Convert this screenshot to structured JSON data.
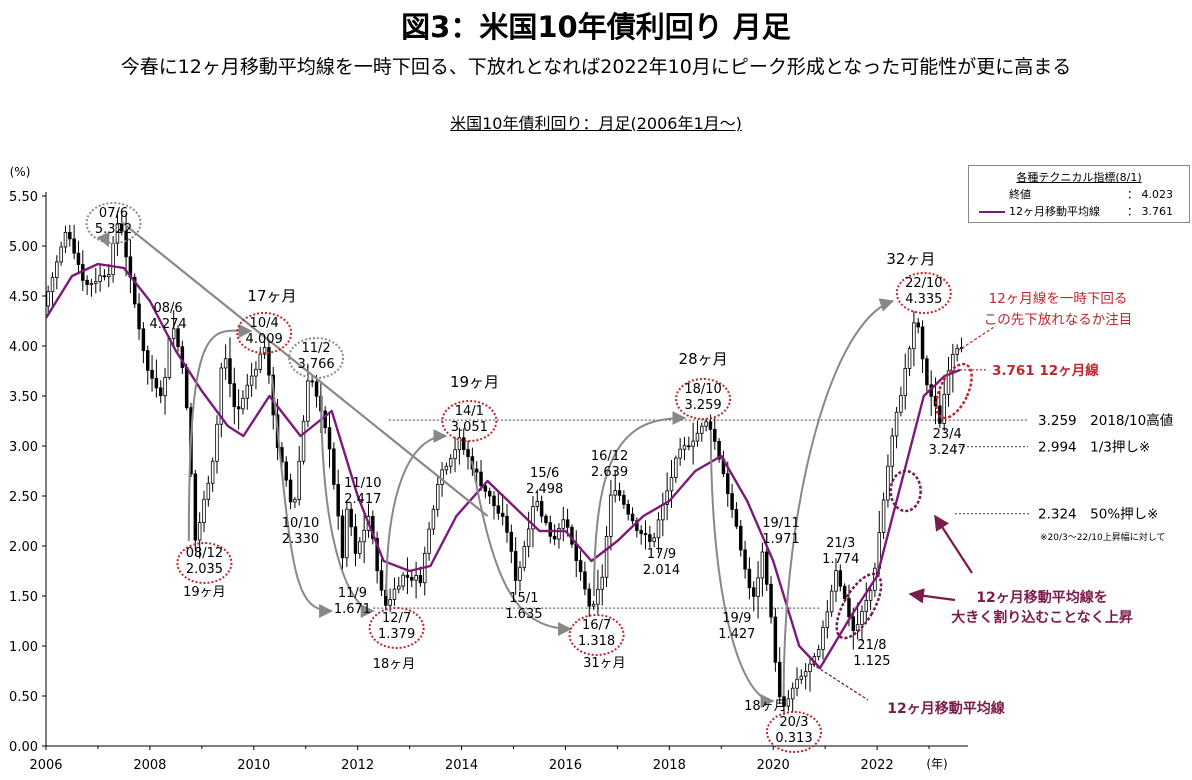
{
  "header": {
    "title": "図3：米国10年債利回り 月足",
    "subtitle": "今春に12ヶ月移動平均線を一時下回る、下放れとなれば2022年10月にピーク形成となった可能性が更に高まる"
  },
  "chart_data": {
    "type": "candlestick",
    "title": "米国10年債利回り：月足(2006年1月〜)",
    "y_unit": "(%)",
    "x_unit": "(年)",
    "ylim": [
      0,
      5.5
    ],
    "yticks": [
      "0.00",
      "0.50",
      "1.00",
      "1.50",
      "2.00",
      "2.50",
      "3.00",
      "3.50",
      "4.00",
      "4.50",
      "5.00",
      "5.50"
    ],
    "xlim": [
      2006,
      2023.75
    ],
    "xticks": [
      "2006",
      "2008",
      "2010",
      "2012",
      "2014",
      "2016",
      "2018",
      "2020",
      "2022"
    ],
    "colors": {
      "moving_average": "#7b1a7b",
      "annotation_red": "#c0262d",
      "arrow_gray": "#888888"
    },
    "key_points": [
      [
        2006.0,
        4.4
      ],
      [
        2006.45,
        5.18
      ],
      [
        2006.8,
        4.6
      ],
      [
        2007.25,
        4.75
      ],
      [
        2007.45,
        5.322
      ],
      [
        2007.7,
        4.55
      ],
      [
        2008.0,
        3.75
      ],
      [
        2008.3,
        3.5
      ],
      [
        2008.45,
        4.274
      ],
      [
        2008.7,
        3.75
      ],
      [
        2008.92,
        2.035
      ],
      [
        2009.3,
        3.0
      ],
      [
        2009.45,
        4.0
      ],
      [
        2009.7,
        3.3
      ],
      [
        2009.92,
        3.6
      ],
      [
        2010.25,
        4.009
      ],
      [
        2010.5,
        3.0
      ],
      [
        2010.8,
        2.33
      ],
      [
        2010.95,
        3.0
      ],
      [
        2011.1,
        3.766
      ],
      [
        2011.5,
        3.0
      ],
      [
        2011.75,
        1.9
      ],
      [
        2011.85,
        2.417
      ],
      [
        2012.0,
        1.9
      ],
      [
        2012.25,
        2.3
      ],
      [
        2012.55,
        1.379
      ],
      [
        2012.9,
        1.7
      ],
      [
        2013.25,
        1.671
      ],
      [
        2013.6,
        2.7
      ],
      [
        2014.0,
        3.051
      ],
      [
        2014.45,
        2.6
      ],
      [
        2014.9,
        2.2
      ],
      [
        2015.1,
        1.635
      ],
      [
        2015.45,
        2.498
      ],
      [
        2015.8,
        2.05
      ],
      [
        2016.0,
        2.3
      ],
      [
        2016.55,
        1.318
      ],
      [
        2016.75,
        1.7
      ],
      [
        2016.95,
        2.639
      ],
      [
        2017.4,
        2.2
      ],
      [
        2017.7,
        2.014
      ],
      [
        2018.2,
        2.9
      ],
      [
        2018.8,
        3.259
      ],
      [
        2019.1,
        2.7
      ],
      [
        2019.65,
        1.427
      ],
      [
        2019.85,
        1.971
      ],
      [
        2020.2,
        0.313
      ],
      [
        2020.45,
        0.6
      ],
      [
        2020.9,
        0.9
      ],
      [
        2021.25,
        1.774
      ],
      [
        2021.6,
        1.125
      ],
      [
        2021.95,
        1.6
      ],
      [
        2022.3,
        3.0
      ],
      [
        2022.8,
        4.335
      ],
      [
        2022.95,
        3.7
      ],
      [
        2023.25,
        3.247
      ],
      [
        2023.45,
        3.9
      ],
      [
        2023.6,
        4.023
      ]
    ],
    "moving_average_points": [
      [
        2006.0,
        4.28
      ],
      [
        2006.5,
        4.7
      ],
      [
        2007.0,
        4.82
      ],
      [
        2007.5,
        4.78
      ],
      [
        2008.0,
        4.45
      ],
      [
        2008.5,
        3.95
      ],
      [
        2009.0,
        3.55
      ],
      [
        2009.5,
        3.2
      ],
      [
        2009.8,
        3.1
      ],
      [
        2010.3,
        3.5
      ],
      [
        2010.9,
        3.1
      ],
      [
        2011.5,
        3.35
      ],
      [
        2012.0,
        2.5
      ],
      [
        2012.5,
        1.85
      ],
      [
        2013.0,
        1.75
      ],
      [
        2013.4,
        1.8
      ],
      [
        2013.9,
        2.3
      ],
      [
        2014.5,
        2.65
      ],
      [
        2015.0,
        2.4
      ],
      [
        2015.5,
        2.15
      ],
      [
        2016.0,
        2.15
      ],
      [
        2016.5,
        1.85
      ],
      [
        2017.0,
        2.05
      ],
      [
        2017.5,
        2.3
      ],
      [
        2018.0,
        2.45
      ],
      [
        2018.5,
        2.75
      ],
      [
        2019.0,
        2.9
      ],
      [
        2019.5,
        2.45
      ],
      [
        2020.0,
        1.85
      ],
      [
        2020.5,
        1.0
      ],
      [
        2020.9,
        0.78
      ],
      [
        2021.5,
        1.3
      ],
      [
        2022.0,
        1.7
      ],
      [
        2022.5,
        2.7
      ],
      [
        2022.9,
        3.5
      ],
      [
        2023.3,
        3.7
      ],
      [
        2023.6,
        3.761
      ]
    ],
    "annotations": [
      {
        "id": "a0706",
        "date": "07/6",
        "value": "5.322"
      },
      {
        "id": "a0806",
        "date": "08/6",
        "value": "4.274"
      },
      {
        "id": "a0812",
        "date": "08/12",
        "value": "2.035",
        "note": "19ヶ月"
      },
      {
        "id": "a1004",
        "date": "10/4",
        "value": "4.009",
        "note": "17ヶ月"
      },
      {
        "id": "a1010",
        "date": "10/10",
        "value": "2.330"
      },
      {
        "id": "a1102",
        "date": "11/2",
        "value": "3.766"
      },
      {
        "id": "a1110",
        "date": "11/10",
        "value": "2.417"
      },
      {
        "id": "a1109",
        "date": "11/9",
        "value": "1.671"
      },
      {
        "id": "a1207",
        "date": "12/7",
        "value": "1.379",
        "note": "18ヶ月"
      },
      {
        "id": "a1401",
        "date": "14/1",
        "value": "3.051",
        "note": "19ヶ月"
      },
      {
        "id": "a1501",
        "date": "15/1",
        "value": "1.635"
      },
      {
        "id": "a1506",
        "date": "15/6",
        "value": "2.498"
      },
      {
        "id": "a1607",
        "date": "16/7",
        "value": "1.318",
        "note": "31ヶ月"
      },
      {
        "id": "a1612",
        "date": "16/12",
        "value": "2.639"
      },
      {
        "id": "a1709",
        "date": "17/9",
        "value": "2.014"
      },
      {
        "id": "a1810",
        "date": "18/10",
        "value": "3.259",
        "note": "28ヶ月"
      },
      {
        "id": "a1909",
        "date": "19/9",
        "value": "1.427"
      },
      {
        "id": "a1911",
        "date": "19/11",
        "value": "1.971"
      },
      {
        "id": "a2003",
        "date": "20/3",
        "value": "0.313",
        "note": "18ヶ月"
      },
      {
        "id": "a2103",
        "date": "21/3",
        "value": "1.774"
      },
      {
        "id": "a2108",
        "date": "21/8",
        "value": "1.125"
      },
      {
        "id": "a2210",
        "date": "22/10",
        "value": "4.335",
        "note": "32ヶ月"
      },
      {
        "id": "a2304",
        "date": "23/4",
        "value": "3.247"
      }
    ],
    "reference_lines": [
      {
        "value": 3.761,
        "label": "3.761 12ヶ月線"
      },
      {
        "value": 3.259,
        "label": "3.259　2018/10高値"
      },
      {
        "value": 2.994,
        "label": "2.994　1/3押し※"
      },
      {
        "value": 2.324,
        "label": "2.324　50%押し※"
      },
      {
        "value": 1.379
      }
    ],
    "callouts": {
      "break_below": "12ヶ月線を一時下回る",
      "watch_downside": "この先下放れなるか注目",
      "rise_above_ma_1": "12ヶ月移動平均線を",
      "rise_above_ma_2": "大きく割り込むことなく上昇",
      "ma_label": "12ヶ月移動平均線",
      "footnote": "※20/3〜22/10上昇幅に対して"
    },
    "legend": {
      "title": "各種テクニカル指標(8/1)",
      "close_label": "終値",
      "close_value": "：  4.023",
      "ma_label": "12ヶ月移動平均線",
      "ma_value": "：  3.761"
    }
  }
}
